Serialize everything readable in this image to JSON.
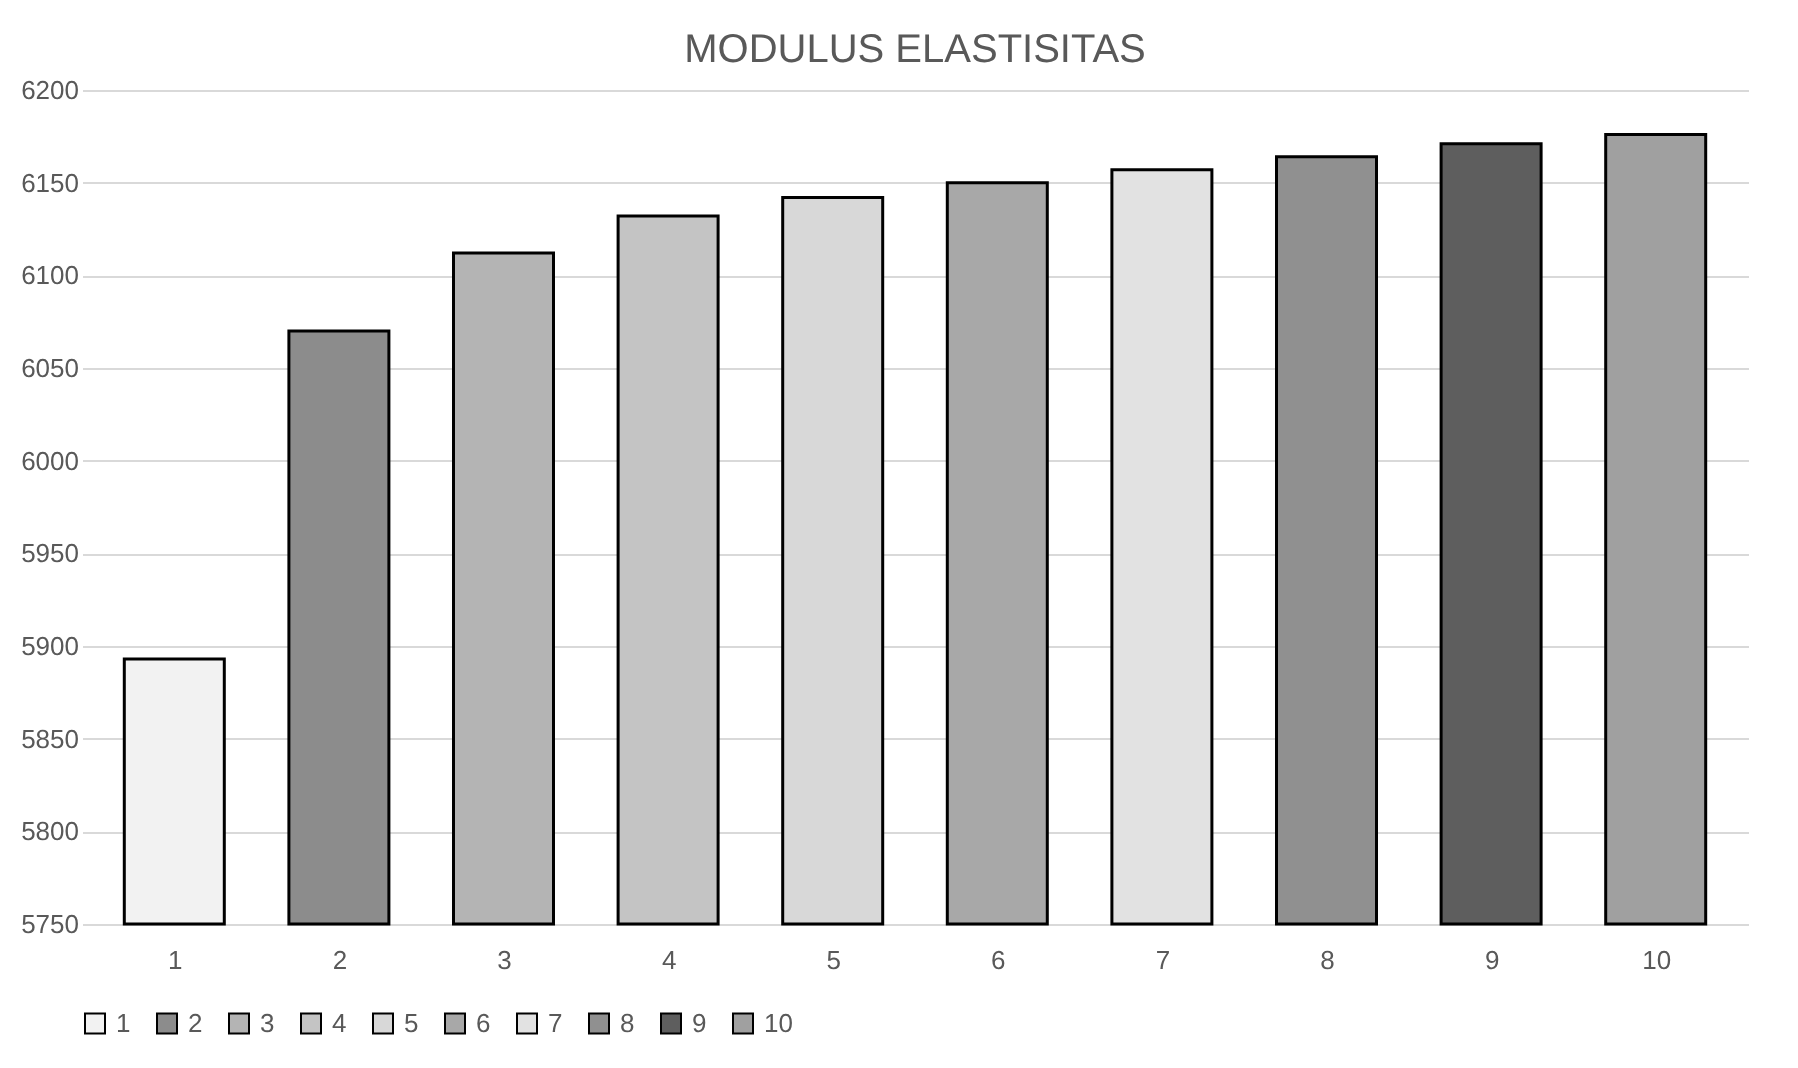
{
  "chart_data": {
    "type": "bar",
    "title": "MODULUS ELASTISITAS",
    "categories": [
      "1",
      "2",
      "3",
      "4",
      "5",
      "6",
      "7",
      "8",
      "9",
      "10"
    ],
    "series": [
      {
        "name": "1",
        "color": "#f2f2f2",
        "values": [
          5893,
          null,
          null,
          null,
          null,
          null,
          null,
          null,
          null,
          null
        ]
      },
      {
        "name": "2",
        "color": "#8c8c8c",
        "values": [
          null,
          6070,
          null,
          null,
          null,
          null,
          null,
          null,
          null,
          null
        ]
      },
      {
        "name": "3",
        "color": "#b4b4b4",
        "values": [
          null,
          null,
          6112,
          null,
          null,
          null,
          null,
          null,
          null,
          null
        ]
      },
      {
        "name": "4",
        "color": "#c4c4c4",
        "values": [
          null,
          null,
          null,
          6132,
          null,
          null,
          null,
          null,
          null,
          null
        ]
      },
      {
        "name": "5",
        "color": "#d8d8d8",
        "values": [
          null,
          null,
          null,
          null,
          6142,
          null,
          null,
          null,
          null,
          null
        ]
      },
      {
        "name": "6",
        "color": "#a8a8a8",
        "values": [
          null,
          null,
          null,
          null,
          null,
          6150,
          null,
          null,
          null,
          null
        ]
      },
      {
        "name": "7",
        "color": "#e2e2e2",
        "values": [
          null,
          null,
          null,
          null,
          null,
          null,
          6157,
          null,
          null,
          null
        ]
      },
      {
        "name": "8",
        "color": "#909090",
        "values": [
          null,
          null,
          null,
          null,
          null,
          null,
          null,
          6164,
          null,
          null
        ]
      },
      {
        "name": "9",
        "color": "#5e5e5e",
        "values": [
          null,
          null,
          null,
          null,
          null,
          null,
          null,
          null,
          6171,
          null
        ]
      },
      {
        "name": "10",
        "color": "#a0a0a0",
        "values": [
          null,
          null,
          null,
          null,
          null,
          null,
          null,
          null,
          null,
          6176
        ]
      }
    ],
    "ylim": [
      5750,
      6200
    ],
    "yticks": [
      5750,
      5800,
      5850,
      5900,
      5950,
      6000,
      6050,
      6100,
      6150,
      6200
    ],
    "grid": "y",
    "legend": "bottom"
  }
}
